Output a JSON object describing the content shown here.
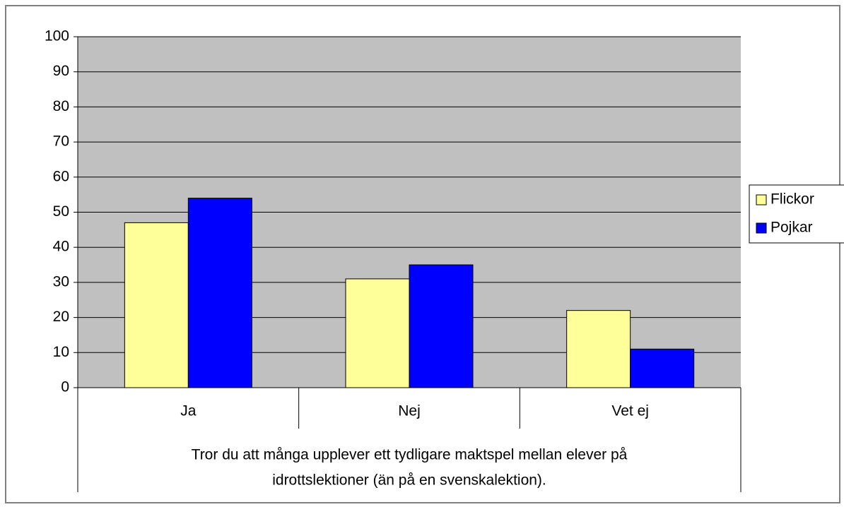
{
  "chart_data": {
    "type": "bar",
    "xlabel": [
      "Tror du att många upplever ett tydligare maktspel mellan elever på",
      "idrottslektioner (än på en svenskalektion)."
    ],
    "categories": [
      "Ja",
      "Nej",
      "Vet ej"
    ],
    "series": [
      {
        "name": "Flickor",
        "color": "#ffff99",
        "values": [
          47,
          31,
          22
        ]
      },
      {
        "name": "Pojkar",
        "color": "#0000ff",
        "values": [
          54,
          35,
          11
        ]
      }
    ],
    "ylim": [
      0,
      100
    ],
    "yticks": [
      0,
      10,
      20,
      30,
      40,
      50,
      60,
      70,
      80,
      90,
      100
    ],
    "grid": true,
    "legend": "right",
    "plot_background": "#c0c0c0"
  }
}
